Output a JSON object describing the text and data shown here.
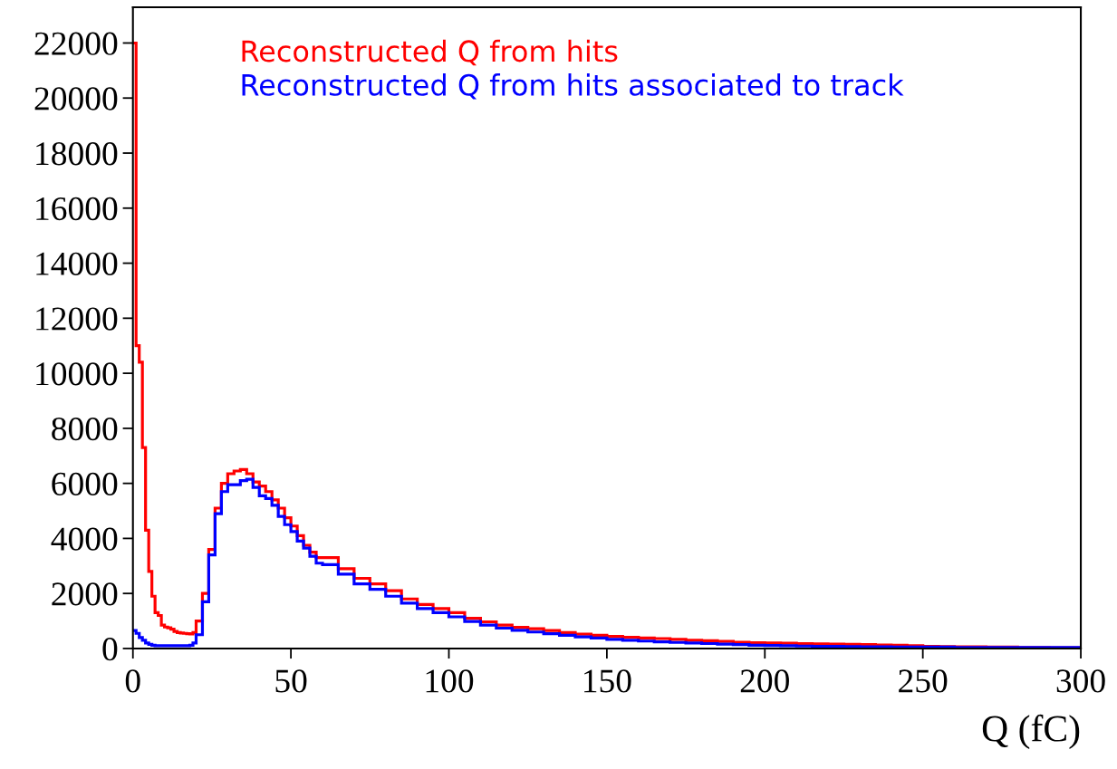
{
  "chart_data": {
    "type": "histogram",
    "xlabel": "Q (fC)",
    "bins": [
      0,
      1,
      2,
      3,
      4,
      5,
      6,
      7,
      8,
      9,
      10,
      11,
      12,
      13,
      14,
      15,
      16,
      17,
      18,
      19,
      20,
      22,
      24,
      26,
      28,
      30,
      32,
      34,
      36,
      38,
      40,
      42,
      44,
      46,
      48,
      50,
      52,
      54,
      56,
      58,
      60,
      65,
      70,
      75,
      80,
      85,
      90,
      95,
      100,
      105,
      110,
      115,
      120,
      125,
      130,
      135,
      140,
      145,
      150,
      155,
      160,
      165,
      170,
      175,
      180,
      185,
      190,
      195,
      200,
      205,
      210,
      215,
      220,
      225,
      230,
      235,
      240,
      245,
      250,
      255,
      260,
      265,
      270,
      275,
      280,
      285,
      290,
      295,
      300
    ],
    "series": [
      {
        "name": "Reconstructed Q from hits",
        "color": "#ff0000",
        "values": [
          22000,
          11000,
          10400,
          7300,
          4300,
          2800,
          1900,
          1300,
          1200,
          850,
          780,
          750,
          700,
          620,
          580,
          560,
          550,
          540,
          530,
          580,
          1000,
          2000,
          3600,
          5100,
          6000,
          6350,
          6450,
          6500,
          6350,
          6050,
          5900,
          5700,
          5400,
          5100,
          4750,
          4450,
          4100,
          3750,
          3500,
          3300,
          3300,
          2900,
          2550,
          2350,
          2100,
          1800,
          1600,
          1450,
          1300,
          1100,
          970,
          850,
          770,
          720,
          650,
          580,
          520,
          480,
          440,
          410,
          380,
          360,
          330,
          300,
          280,
          260,
          230,
          210,
          200,
          190,
          180,
          170,
          160,
          150,
          140,
          130,
          120,
          100,
          80,
          70,
          60,
          60,
          50,
          50,
          40,
          40,
          30,
          30
        ]
      },
      {
        "name": "Reconstructed Q from hits associated to track",
        "color": "#0000ff",
        "values": [
          650,
          550,
          400,
          300,
          200,
          150,
          120,
          100,
          100,
          100,
          100,
          100,
          100,
          100,
          100,
          100,
          100,
          100,
          120,
          200,
          500,
          1700,
          3400,
          4900,
          5700,
          5950,
          5950,
          6100,
          6150,
          5850,
          5550,
          5450,
          5200,
          4800,
          4500,
          4250,
          3900,
          3650,
          3350,
          3100,
          3050,
          2700,
          2350,
          2150,
          1900,
          1650,
          1450,
          1300,
          1150,
          980,
          850,
          740,
          660,
          600,
          540,
          480,
          420,
          380,
          330,
          300,
          270,
          240,
          220,
          200,
          180,
          160,
          140,
          120,
          110,
          100,
          90,
          80,
          80,
          70,
          60,
          60,
          50,
          50,
          50,
          50,
          40,
          40,
          40,
          40,
          40,
          40,
          40,
          40
        ]
      }
    ],
    "xlim": [
      0,
      300
    ],
    "xticks": [
      0,
      50,
      100,
      150,
      200,
      250,
      300
    ],
    "ylim": [
      0,
      23300
    ],
    "yticks": [
      0,
      2000,
      4000,
      6000,
      8000,
      10000,
      12000,
      14000,
      16000,
      18000,
      20000,
      22000
    ],
    "legend": "top left",
    "grid": false
  }
}
